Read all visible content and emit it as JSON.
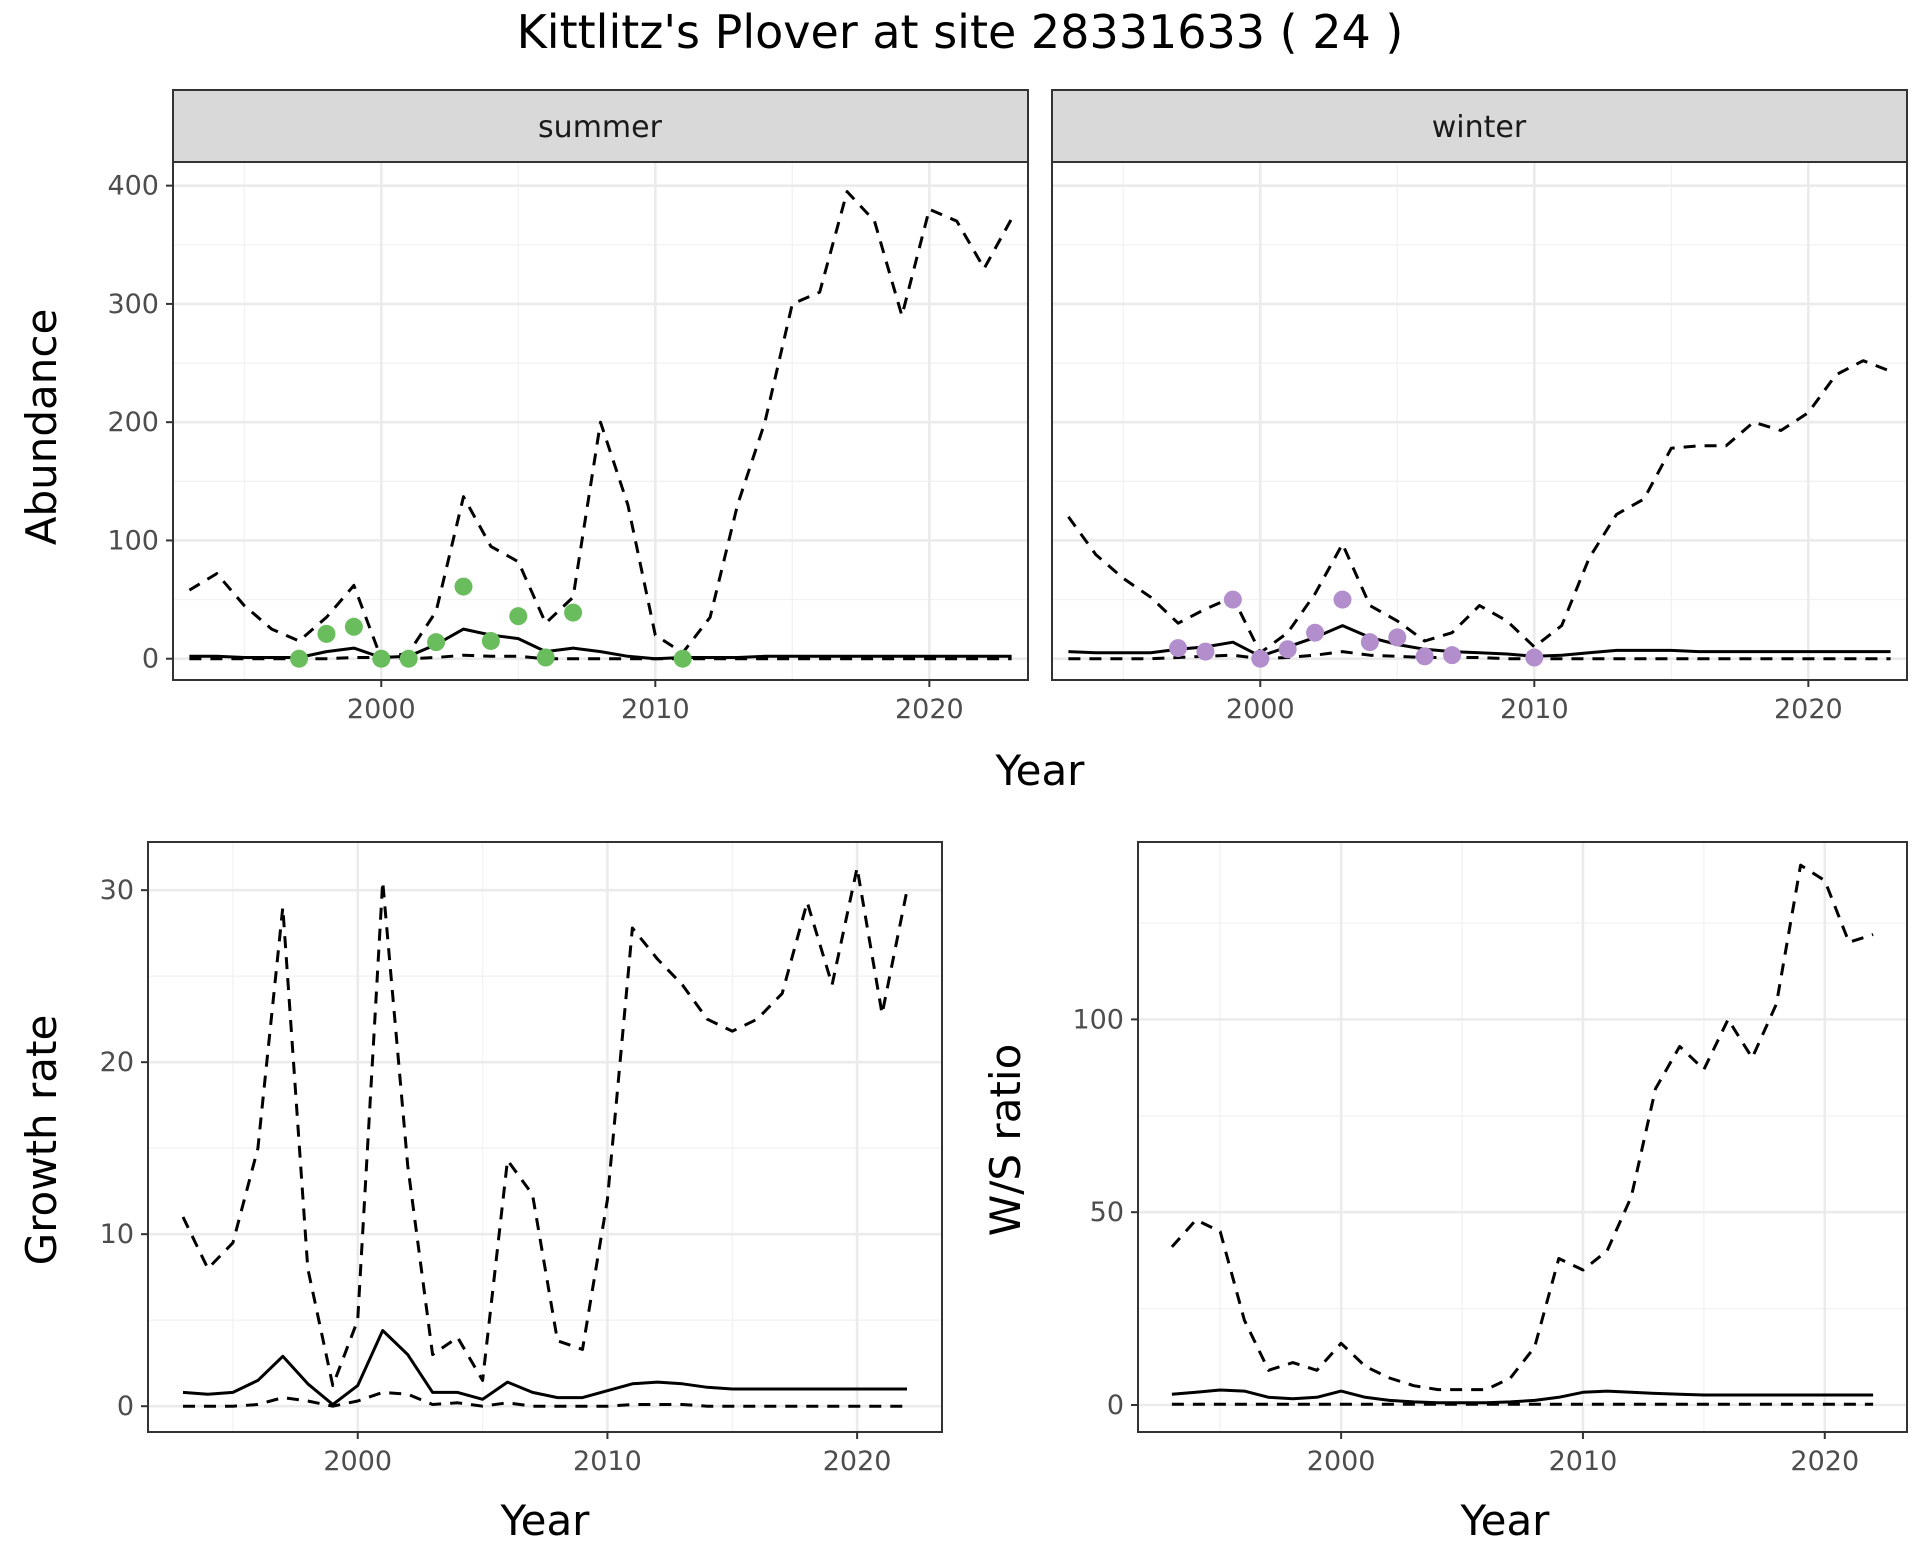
{
  "title": "Kittlitz's Plover at site 28331633 ( 24 )",
  "colors": {
    "summer_points": "#6ABD5D",
    "winter_points": "#B28FCC",
    "line": "#000000",
    "grid_major": "#EBEBEB",
    "strip_bg": "#D9D9D9"
  },
  "chart_data": [
    {
      "type": "line",
      "panel": "summer",
      "xlabel": "Year",
      "ylabel": "Abundance",
      "xlim": [
        1992.4,
        2023.6
      ],
      "ylim": [
        -18,
        420
      ],
      "xticks": [
        2000,
        2010,
        2020
      ],
      "yticks": [
        0,
        100,
        200,
        300,
        400
      ],
      "grid": true,
      "series": [
        {
          "style": "solid",
          "x": [
            1993,
            1994,
            1995,
            1996,
            1997,
            1998,
            1999,
            2000,
            2001,
            2002,
            2003,
            2004,
            2005,
            2006,
            2007,
            2008,
            2009,
            2010,
            2011,
            2012,
            2013,
            2014,
            2015,
            2016,
            2017,
            2018,
            2019,
            2020,
            2021,
            2022,
            2023
          ],
          "values": [
            2,
            2,
            1,
            1,
            1,
            6,
            9,
            1,
            2,
            12,
            25,
            20,
            17,
            6,
            9,
            6,
            2,
            0,
            1,
            1,
            1,
            2,
            2,
            2,
            2,
            2,
            2,
            2,
            2,
            2,
            2
          ]
        },
        {
          "style": "dashed",
          "x": [
            1993,
            1994,
            1995,
            1996,
            1997,
            1998,
            1999,
            2000,
            2001,
            2002,
            2003,
            2004,
            2005,
            2006,
            2007,
            2008,
            2009,
            2010,
            2011,
            2012,
            2013,
            2014,
            2015,
            2016,
            2017,
            2018,
            2019,
            2020,
            2021,
            2022,
            2023
          ],
          "values": [
            58,
            72,
            45,
            25,
            15,
            35,
            62,
            0,
            5,
            40,
            137,
            95,
            82,
            30,
            52,
            200,
            130,
            20,
            5,
            35,
            130,
            200,
            300,
            310,
            395,
            370,
            290,
            380,
            370,
            330,
            372
          ]
        },
        {
          "style": "dashed",
          "x": [
            1993,
            1994,
            1995,
            1996,
            1997,
            1998,
            1999,
            2000,
            2001,
            2002,
            2003,
            2004,
            2005,
            2006,
            2007,
            2008,
            2009,
            2010,
            2011,
            2012,
            2013,
            2014,
            2015,
            2016,
            2017,
            2018,
            2019,
            2020,
            2021,
            2022,
            2023
          ],
          "values": [
            0,
            0,
            0,
            0,
            0,
            0,
            1,
            1,
            0,
            1,
            3,
            2,
            2,
            0,
            0,
            0,
            0,
            0,
            0,
            0,
            0,
            0,
            0,
            0,
            0,
            0,
            0,
            0,
            0,
            0,
            0
          ]
        },
        {
          "style": "points",
          "x": [
            1997,
            1998,
            1999,
            2000,
            2001,
            2002,
            2003,
            2004,
            2005,
            2006,
            2007,
            2011
          ],
          "values": [
            0,
            21,
            27,
            0,
            0,
            14,
            61,
            15,
            36,
            1,
            39,
            0
          ]
        }
      ]
    },
    {
      "type": "line",
      "panel": "winter",
      "xlabel": "Year",
      "ylabel": "Abundance",
      "xlim": [
        1992.4,
        2023.6
      ],
      "ylim": [
        -18,
        420
      ],
      "xticks": [
        2000,
        2010,
        2020
      ],
      "yticks": [
        0,
        100,
        200,
        300,
        400
      ],
      "grid": true,
      "series": [
        {
          "style": "solid",
          "x": [
            1993,
            1994,
            1995,
            1996,
            1997,
            1998,
            1999,
            2000,
            2001,
            2002,
            2003,
            2004,
            2005,
            2006,
            2007,
            2008,
            2009,
            2010,
            2011,
            2012,
            2013,
            2014,
            2015,
            2016,
            2017,
            2018,
            2019,
            2020,
            2021,
            2022,
            2023
          ],
          "values": [
            6,
            5,
            5,
            5,
            8,
            10,
            14,
            2,
            10,
            18,
            28,
            18,
            12,
            8,
            6,
            5,
            4,
            2,
            3,
            5,
            7,
            7,
            7,
            6,
            6,
            6,
            6,
            6,
            6,
            6,
            6
          ]
        },
        {
          "style": "dashed",
          "x": [
            1993,
            1994,
            1995,
            1996,
            1997,
            1998,
            1999,
            2000,
            2001,
            2002,
            2003,
            2004,
            2005,
            2006,
            2007,
            2008,
            2009,
            2010,
            2011,
            2012,
            2013,
            2014,
            2015,
            2016,
            2017,
            2018,
            2019,
            2020,
            2021,
            2022,
            2023
          ],
          "values": [
            120,
            88,
            68,
            52,
            30,
            42,
            52,
            5,
            22,
            55,
            97,
            45,
            32,
            15,
            22,
            45,
            32,
            10,
            28,
            85,
            122,
            135,
            178,
            180,
            180,
            200,
            193,
            208,
            240,
            252,
            243
          ]
        },
        {
          "style": "dashed",
          "x": [
            1993,
            1994,
            1995,
            1996,
            1997,
            1998,
            1999,
            2000,
            2001,
            2002,
            2003,
            2004,
            2005,
            2006,
            2007,
            2008,
            2009,
            2010,
            2011,
            2012,
            2013,
            2014,
            2015,
            2016,
            2017,
            2018,
            2019,
            2020,
            2021,
            2022,
            2023
          ],
          "values": [
            0,
            0,
            0,
            0,
            1,
            2,
            3,
            0,
            1,
            3,
            6,
            3,
            2,
            1,
            1,
            1,
            0,
            0,
            0,
            0,
            0,
            0,
            0,
            0,
            0,
            0,
            0,
            0,
            0,
            0,
            0
          ]
        },
        {
          "style": "points",
          "x": [
            1997,
            1998,
            1999,
            2000,
            2001,
            2002,
            2003,
            2004,
            2005,
            2006,
            2007,
            2010
          ],
          "values": [
            9,
            6,
            50,
            0,
            8,
            22,
            50,
            14,
            18,
            2,
            3,
            1
          ]
        }
      ]
    },
    {
      "type": "line",
      "panel": "growth",
      "xlabel": "Year",
      "ylabel": "Growth rate",
      "xlim": [
        1991.6,
        2023.4
      ],
      "ylim": [
        -1.5,
        32.8
      ],
      "xticks": [
        2000,
        2010,
        2020
      ],
      "yticks": [
        0,
        10,
        20,
        30
      ],
      "grid": true,
      "series": [
        {
          "style": "solid",
          "x": [
            1993,
            1994,
            1995,
            1996,
            1997,
            1998,
            1999,
            2000,
            2001,
            2002,
            2003,
            2004,
            2005,
            2006,
            2007,
            2008,
            2009,
            2010,
            2011,
            2012,
            2013,
            2014,
            2015,
            2016,
            2017,
            2018,
            2019,
            2020,
            2021,
            2022
          ],
          "values": [
            0.8,
            0.7,
            0.8,
            1.5,
            2.9,
            1.3,
            0.1,
            1.2,
            4.4,
            3.0,
            0.8,
            0.8,
            0.4,
            1.4,
            0.8,
            0.5,
            0.5,
            0.9,
            1.3,
            1.4,
            1.3,
            1.1,
            1.0,
            1.0,
            1.0,
            1.0,
            1.0,
            1.0,
            1.0,
            1.0
          ]
        },
        {
          "style": "dashed",
          "x": [
            1993,
            1994,
            1995,
            1996,
            1997,
            1998,
            1999,
            2000,
            2001,
            2002,
            2003,
            2004,
            2005,
            2006,
            2007,
            2008,
            2009,
            2010,
            2011,
            2012,
            2013,
            2014,
            2015,
            2016,
            2017,
            2018,
            2019,
            2020,
            2021,
            2022
          ],
          "values": [
            11,
            8,
            9.5,
            15,
            29,
            8,
            1.2,
            5,
            30.5,
            14,
            3,
            4,
            1.5,
            14.3,
            12.3,
            3.8,
            3.3,
            12,
            27.8,
            26,
            24.5,
            22.5,
            21.8,
            22.5,
            24,
            29.3,
            24.5,
            31.3,
            22.8,
            30
          ]
        },
        {
          "style": "dashed",
          "x": [
            1993,
            1994,
            1995,
            1996,
            1997,
            1998,
            1999,
            2000,
            2001,
            2002,
            2003,
            2004,
            2005,
            2006,
            2007,
            2008,
            2009,
            2010,
            2011,
            2012,
            2013,
            2014,
            2015,
            2016,
            2017,
            2018,
            2019,
            2020,
            2021,
            2022
          ],
          "values": [
            0,
            0,
            0,
            0.1,
            0.5,
            0.3,
            0,
            0.3,
            0.8,
            0.7,
            0.1,
            0.2,
            0,
            0.2,
            0,
            0,
            0,
            0,
            0.1,
            0.1,
            0.1,
            0,
            0,
            0,
            0,
            0,
            0,
            0,
            0,
            0
          ]
        }
      ]
    },
    {
      "type": "line",
      "panel": "ratio",
      "xlabel": "Year",
      "ylabel": "W/S ratio",
      "xlim": [
        1991.6,
        2023.4
      ],
      "ylim": [
        -7,
        146
      ],
      "xticks": [
        2000,
        2010,
        2020
      ],
      "yticks": [
        0,
        50,
        100
      ],
      "grid": true,
      "series": [
        {
          "style": "solid",
          "x": [
            1993,
            1994,
            1995,
            1996,
            1997,
            1998,
            1999,
            2000,
            2001,
            2002,
            2003,
            2004,
            2005,
            2006,
            2007,
            2008,
            2009,
            2010,
            2011,
            2012,
            2013,
            2014,
            2015,
            2016,
            2017,
            2018,
            2019,
            2020,
            2021,
            2022
          ],
          "values": [
            2.8,
            3.3,
            3.9,
            3.6,
            2.0,
            1.6,
            2.0,
            3.6,
            2.0,
            1.2,
            0.8,
            0.6,
            0.6,
            0.6,
            0.8,
            1.2,
            2.0,
            3.3,
            3.6,
            3.3,
            3.0,
            2.8,
            2.6,
            2.6,
            2.6,
            2.6,
            2.6,
            2.6,
            2.6,
            2.6
          ]
        },
        {
          "style": "dashed",
          "x": [
            1993,
            1994,
            1995,
            1996,
            1997,
            1998,
            1999,
            2000,
            2001,
            2002,
            2003,
            2004,
            2005,
            2006,
            2007,
            2008,
            2009,
            2010,
            2011,
            2012,
            2013,
            2014,
            2015,
            2016,
            2017,
            2018,
            2019,
            2020,
            2021,
            2022
          ],
          "values": [
            41,
            48,
            45,
            22,
            9,
            11,
            9,
            16,
            10,
            7,
            5,
            4,
            4,
            4,
            7,
            15,
            38,
            35,
            40,
            54,
            82,
            93,
            87,
            100,
            90,
            104,
            140,
            136,
            120,
            122
          ]
        },
        {
          "style": "dashed",
          "x": [
            1993,
            1994,
            1995,
            1996,
            1997,
            1998,
            1999,
            2000,
            2001,
            2002,
            2003,
            2004,
            2005,
            2006,
            2007,
            2008,
            2009,
            2010,
            2011,
            2012,
            2013,
            2014,
            2015,
            2016,
            2017,
            2018,
            2019,
            2020,
            2021,
            2022
          ],
          "values": [
            0.2,
            0.2,
            0.2,
            0.2,
            0.2,
            0.2,
            0.2,
            0.2,
            0.2,
            0.2,
            0.2,
            0.2,
            0.2,
            0.2,
            0.2,
            0.2,
            0.2,
            0.2,
            0.2,
            0.2,
            0.2,
            0.2,
            0.2,
            0.2,
            0.2,
            0.2,
            0.2,
            0.2,
            0.2,
            0.2
          ]
        }
      ]
    }
  ]
}
